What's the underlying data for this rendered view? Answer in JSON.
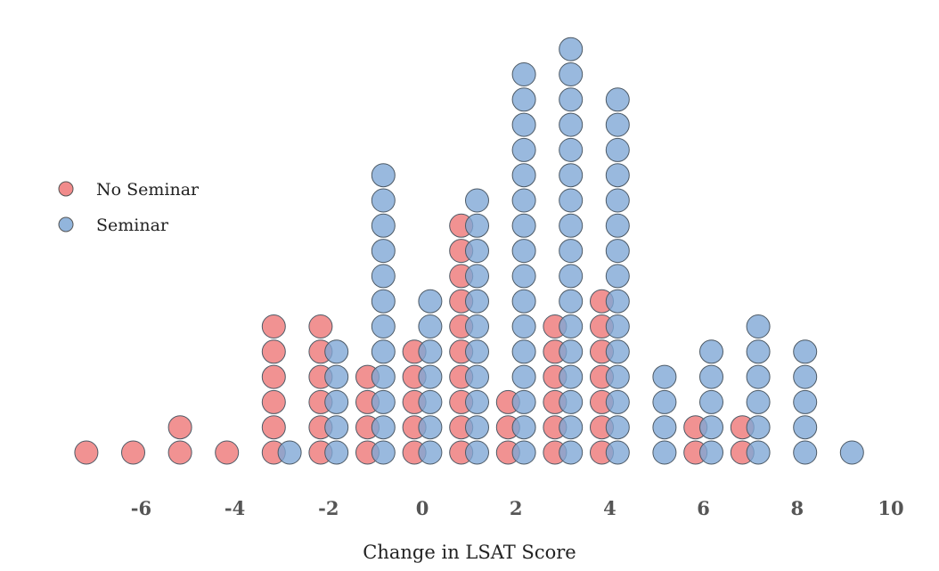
{
  "chart_data": {
    "type": "dot-plot",
    "xlabel": "Change in LSAT Score",
    "ylabel": "",
    "title": "",
    "xlim": [
      -8,
      11
    ],
    "x_ticks": [
      -6,
      -4,
      -2,
      0,
      2,
      4,
      6,
      8,
      10
    ],
    "grid": false,
    "legend_position": "left",
    "series": [
      {
        "name": "No Seminar",
        "color": "#ee7777",
        "points": [
          {
            "x": -7,
            "count": 1
          },
          {
            "x": -6,
            "count": 1
          },
          {
            "x": -5,
            "count": 2
          },
          {
            "x": -4,
            "count": 1
          },
          {
            "x": -3,
            "count": 6
          },
          {
            "x": -2,
            "count": 6
          },
          {
            "x": -1,
            "count": 4
          },
          {
            "x": 0,
            "count": 5
          },
          {
            "x": 1,
            "count": 10
          },
          {
            "x": 2,
            "count": 3
          },
          {
            "x": 3,
            "count": 6
          },
          {
            "x": 4,
            "count": 7
          },
          {
            "x": 6,
            "count": 2
          },
          {
            "x": 7,
            "count": 2
          }
        ]
      },
      {
        "name": "Seminar",
        "color": "#7fa8d6",
        "points": [
          {
            "x": -3,
            "count": 1
          },
          {
            "x": -2,
            "count": 5
          },
          {
            "x": -1,
            "count": 12
          },
          {
            "x": 0,
            "count": 7
          },
          {
            "x": 1,
            "count": 11
          },
          {
            "x": 2,
            "count": 16
          },
          {
            "x": 3,
            "count": 17
          },
          {
            "x": 4,
            "count": 15
          },
          {
            "x": 5,
            "count": 4
          },
          {
            "x": 6,
            "count": 5
          },
          {
            "x": 7,
            "count": 6
          },
          {
            "x": 8,
            "count": 5
          },
          {
            "x": 9,
            "count": 1
          }
        ]
      }
    ]
  }
}
